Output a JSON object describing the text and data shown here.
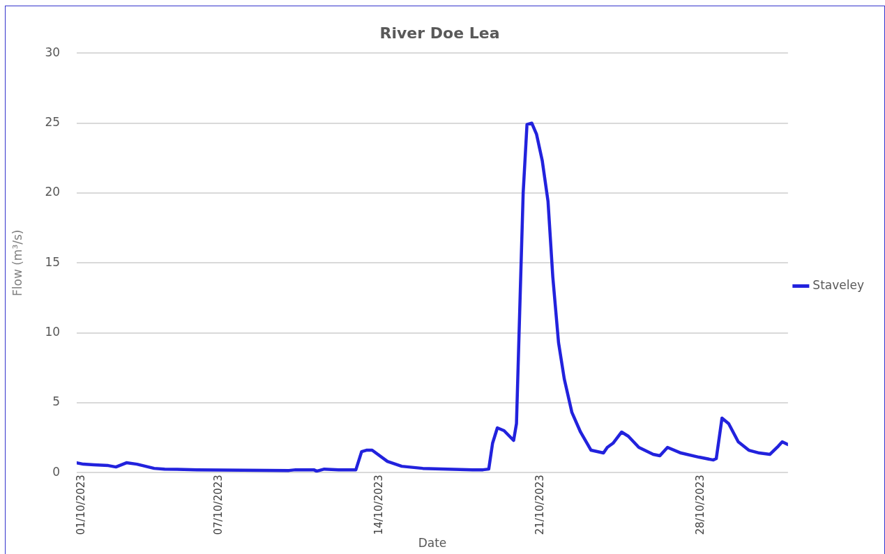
{
  "chart_data": {
    "type": "line",
    "title": "River Doe Lea",
    "xlabel": "Date",
    "ylabel": "Flow (m³/s)",
    "x": [
      "2023-09-30T19:00",
      "2023-10-01T02:00",
      "2023-10-01T13:00",
      "2023-10-02T04:00",
      "2023-10-02T12:00",
      "2023-10-02T23:00",
      "2023-10-03T10:00",
      "2023-10-04T04:00",
      "2023-10-04T15:00",
      "2023-10-06T01:00",
      "2023-10-10T01:00",
      "2023-10-10T08:00",
      "2023-10-11T03:00",
      "2023-10-11T06:00",
      "2023-10-11T14:00",
      "2023-10-12T05:00",
      "2023-10-12T23:00",
      "2023-10-13T05:00",
      "2023-10-13T10:00",
      "2023-10-13T16:00",
      "2023-10-14T08:00",
      "2023-10-14T23:00",
      "2023-10-15T21:00",
      "2023-10-18T01:00",
      "2023-10-18T12:00",
      "2023-10-18T18:00",
      "2023-10-18T22:00",
      "2023-10-19T03:00",
      "2023-10-19T10:00",
      "2023-10-19T20:00",
      "2023-10-19T23:00",
      "2023-10-20T03:00",
      "2023-10-20T06:00",
      "2023-10-20T10:00",
      "2023-10-20T15:00",
      "2023-10-20T20:00",
      "2023-10-21T02:00",
      "2023-10-21T08:00",
      "2023-10-21T13:00",
      "2023-10-21T19:00",
      "2023-10-22T01:00",
      "2023-10-22T09:00",
      "2023-10-22T18:00",
      "2023-10-23T05:00",
      "2023-10-23T18:00",
      "2023-10-23T22:00",
      "2023-10-24T04:00",
      "2023-10-24T13:00",
      "2023-10-24T20:00",
      "2023-10-25T07:00",
      "2023-10-25T22:00",
      "2023-10-26T05:00",
      "2023-10-26T13:00",
      "2023-10-27T03:00",
      "2023-10-27T22:00",
      "2023-10-28T13:00",
      "2023-10-28T16:00",
      "2023-10-28T22:00",
      "2023-10-29T05:00",
      "2023-10-29T15:00",
      "2023-10-30T02:00",
      "2023-10-30T13:00",
      "2023-10-31T00:00",
      "2023-10-31T09:00",
      "2023-10-31T13:00",
      "2023-10-31T19:00"
    ],
    "series": [
      {
        "name": "Staveley",
        "color": "#2222dd",
        "values": [
          0.7,
          0.6,
          0.55,
          0.5,
          0.4,
          0.7,
          0.6,
          0.3,
          0.25,
          0.2,
          0.15,
          0.2,
          0.2,
          0.1,
          0.25,
          0.2,
          0.2,
          1.5,
          1.6,
          1.6,
          0.8,
          0.45,
          0.3,
          0.2,
          0.2,
          0.25,
          2.1,
          3.2,
          3.0,
          2.3,
          3.5,
          13,
          20,
          24.9,
          25.0,
          24.2,
          22.3,
          19.4,
          14,
          9.3,
          6.7,
          4.3,
          2.9,
          1.6,
          1.4,
          1.8,
          2.1,
          2.9,
          2.6,
          1.8,
          1.3,
          1.2,
          1.8,
          1.4,
          1.1,
          0.9,
          1.0,
          3.9,
          3.5,
          2.2,
          1.6,
          1.4,
          1.3,
          1.9,
          2.2,
          2.0
        ]
      }
    ],
    "xlim": [
      "2023-09-30T19:00",
      "2023-10-31T19:00"
    ],
    "xticks": [
      {
        "value": "2023-10-01",
        "label": "01/10/2023"
      },
      {
        "value": "2023-10-07",
        "label": "07/10/2023"
      },
      {
        "value": "2023-10-14",
        "label": "14/10/2023"
      },
      {
        "value": "2023-10-21",
        "label": "21/10/2023"
      },
      {
        "value": "2023-10-28",
        "label": "28/10/2023"
      }
    ],
    "ylim": [
      0,
      30
    ],
    "yticks": [
      0,
      5,
      10,
      15,
      20,
      25,
      30
    ],
    "grid": "y",
    "legend": "right",
    "marker": "none",
    "line_style": "solid"
  }
}
